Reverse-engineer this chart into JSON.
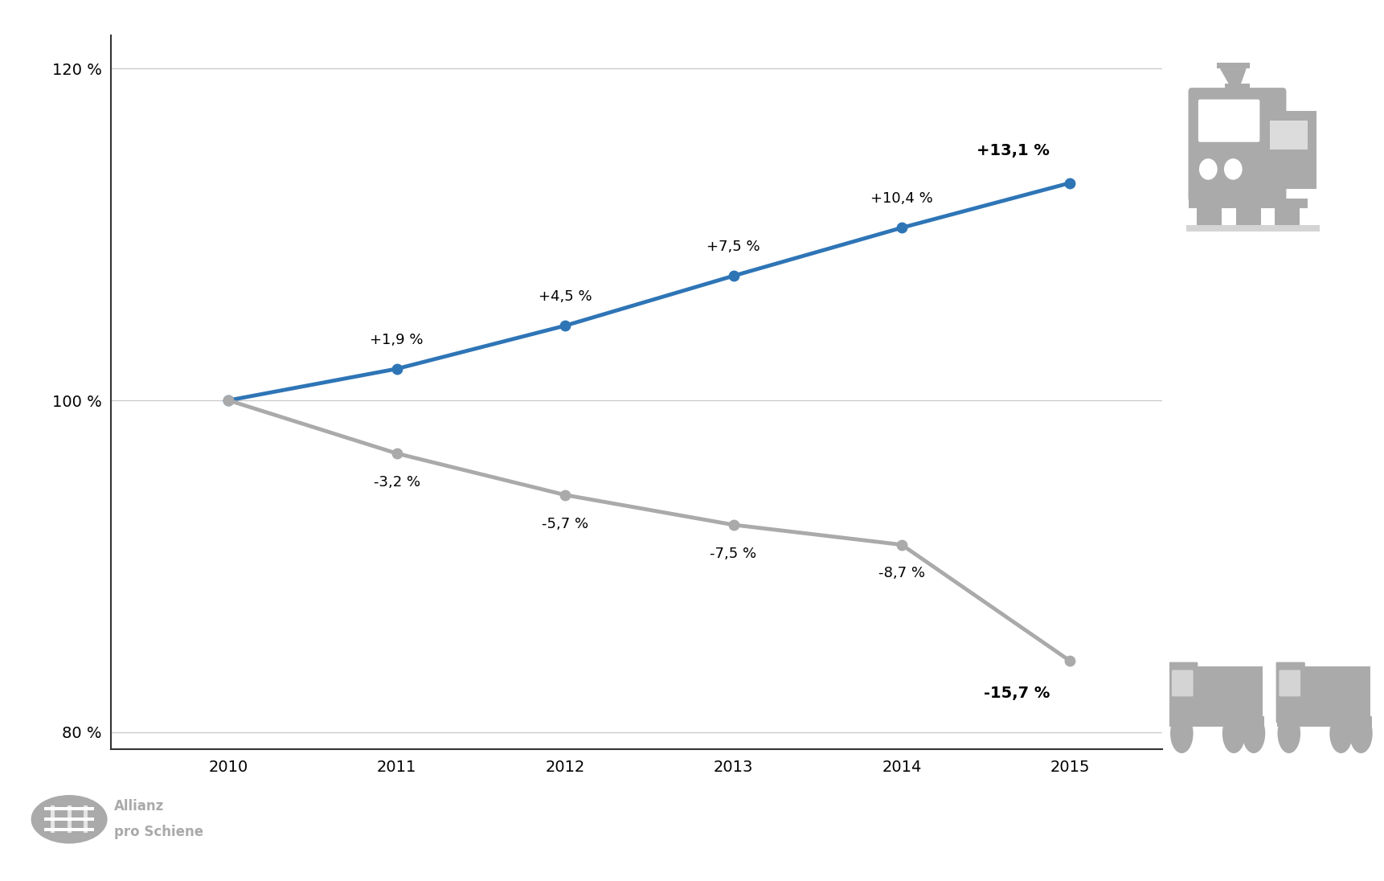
{
  "years": [
    2010,
    2011,
    2012,
    2013,
    2014,
    2015
  ],
  "blue_values": [
    100,
    101.9,
    104.5,
    107.5,
    110.4,
    113.1
  ],
  "gray_values": [
    100,
    96.8,
    94.3,
    92.5,
    91.3,
    84.3
  ],
  "blue_labels": [
    "+1,9 %",
    "+4,5 %",
    "+7,5 %",
    "+10,4 %",
    "+13,1 %"
  ],
  "gray_labels": [
    "-3,2 %",
    "-5,7 %",
    "-7,5 %",
    "-8,7 %",
    "-15,7 %"
  ],
  "blue_color": "#2E75B6",
  "gray_color": "#AAAAAA",
  "icon_color": "#AAAAAA",
  "bg_color": "#FFFFFF",
  "grid_color": "#C8C8C8",
  "spine_color": "#333333",
  "ylim_min": 79,
  "ylim_max": 122,
  "yticks": [
    80,
    100,
    120
  ],
  "ytick_labels": [
    "80 %",
    "100 %",
    "120 %"
  ],
  "marker_size": 9,
  "line_width": 3.5,
  "label_fontsize": 13,
  "label_bold_fontsize": 14,
  "tick_fontsize": 14,
  "logo_text": "Allianz\npro Schiene"
}
